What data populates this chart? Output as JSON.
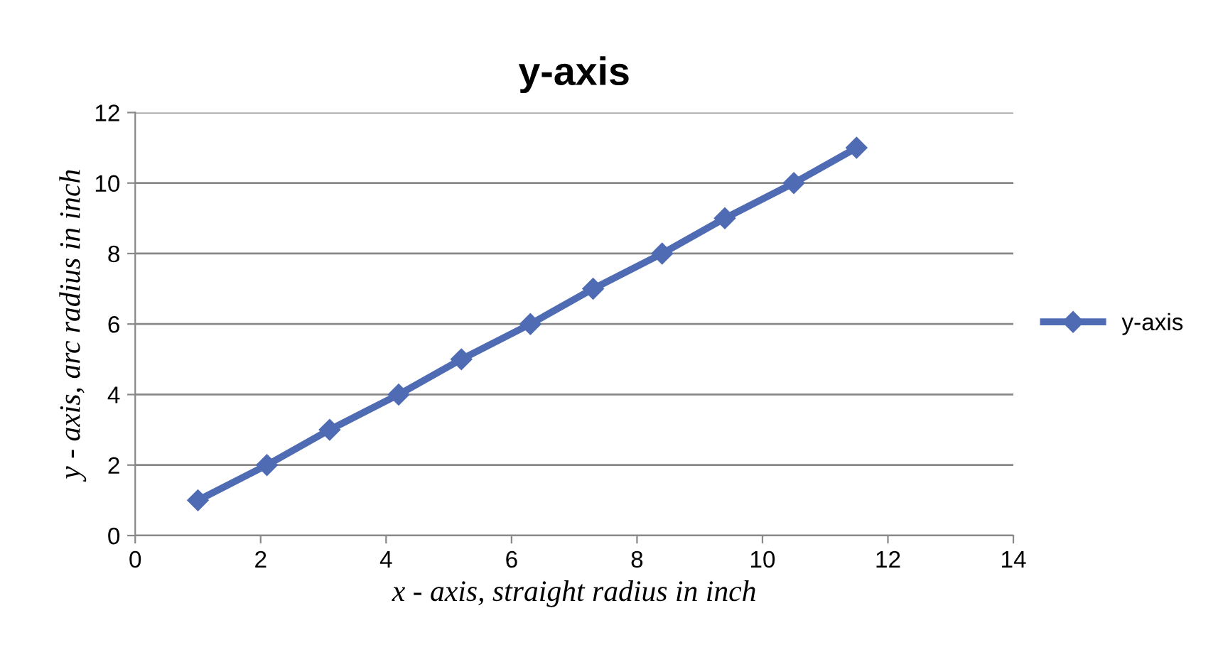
{
  "chart_data": {
    "type": "line",
    "title": "y-axis",
    "xlabel": "x - axis, straight radius in inch",
    "ylabel": "y - axis, arc radius in inch",
    "series": [
      {
        "name": "y-axis",
        "color": "#4f6bb3",
        "x": [
          1.0,
          2.1,
          3.1,
          4.2,
          5.2,
          6.3,
          7.3,
          8.4,
          9.4,
          10.5,
          11.5
        ],
        "values": [
          1,
          2,
          3,
          4,
          5,
          6,
          7,
          8,
          9,
          10,
          11
        ]
      }
    ],
    "xlim": [
      0,
      14
    ],
    "xticks": [
      0,
      2,
      4,
      6,
      8,
      10,
      12,
      14
    ],
    "ylim": [
      0,
      12
    ],
    "yticks": [
      0,
      2,
      4,
      6,
      8,
      10,
      12
    ],
    "grid": "y",
    "legend": "right",
    "marker": "diamond",
    "line_style": "solid"
  }
}
